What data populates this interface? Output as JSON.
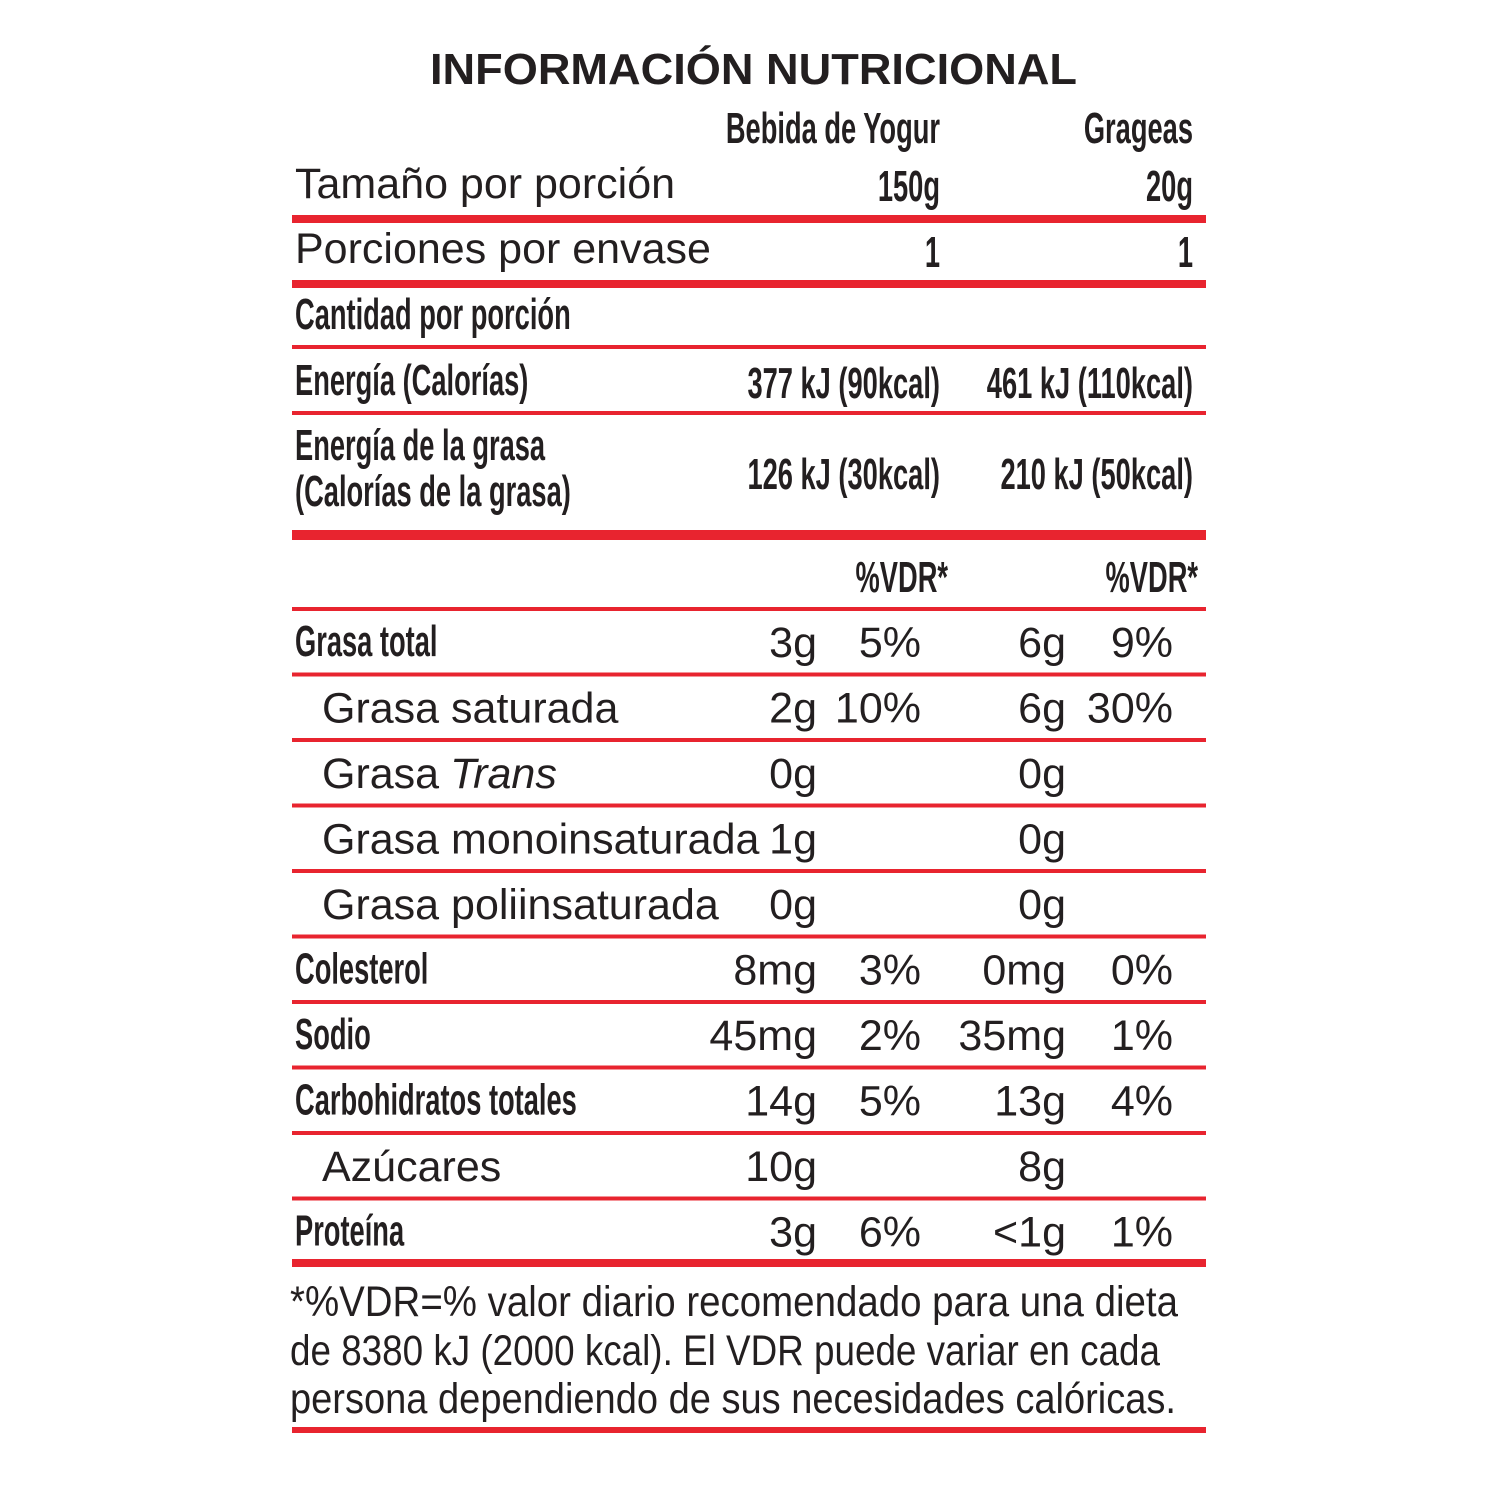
{
  "title": "INFORMACIÓN NUTRICIONAL",
  "columns": [
    "Bebida de Yogur",
    "Grageas"
  ],
  "serving_size": {
    "label": "Tamaño por porción",
    "values": [
      "150g",
      "20g"
    ]
  },
  "servings_per_container": {
    "label": "Porciones por envase",
    "values": [
      "1",
      "1"
    ]
  },
  "amount_per_serving": "Cantidad por porción",
  "energy": {
    "label": "Energía (Calorías)",
    "values": [
      "377 kJ (90kcal)",
      "461 kJ (110kcal)"
    ]
  },
  "fat_energy": {
    "label": [
      "Energía de la grasa",
      "(Calorías de la grasa)"
    ],
    "values": [
      "126 kJ (30kcal)",
      "210 kJ (50kcal)"
    ]
  },
  "vdr_headers": [
    "%VDR*",
    "%VDR*"
  ],
  "nutrients": [
    {
      "label": "Grasa total",
      "bold": true,
      "values": [
        "3g",
        "5%",
        "6g",
        "9%"
      ]
    },
    {
      "label": "Grasa saturada",
      "bold": false,
      "values": [
        "2g",
        "10%",
        "6g",
        "30%"
      ]
    },
    {
      "label": "Grasa",
      "label_italic": "Trans",
      "bold": false,
      "values": [
        "0g",
        null,
        "0g",
        null
      ]
    },
    {
      "label": "Grasa monoinsaturada",
      "bold": false,
      "values": [
        "1g",
        null,
        "0g",
        null
      ]
    },
    {
      "label": "Grasa poliinsaturada",
      "bold": false,
      "values": [
        "0g",
        null,
        "0g",
        null
      ]
    },
    {
      "label": "Colesterol",
      "bold": true,
      "values": [
        "8mg",
        "3%",
        "0mg",
        "0%"
      ]
    },
    {
      "label": "Sodio",
      "bold": true,
      "values": [
        "45mg",
        "2%",
        "35mg",
        "1%"
      ]
    },
    {
      "label": "Carbohidratos totales",
      "bold": true,
      "values": [
        "14g",
        "5%",
        "13g",
        "4%"
      ]
    },
    {
      "label": "Azúcares",
      "bold": false,
      "values": [
        "10g",
        null,
        "8g",
        null
      ]
    },
    {
      "label": "Proteína",
      "bold": true,
      "values": [
        "3g",
        "6%",
        "<1g",
        "1%"
      ]
    }
  ],
  "footnote": [
    "*%VDR=% valor diario recomendado para una dieta",
    "de 8380 kJ (2000 kcal). El VDR puede variar en cada",
    "persona dependiendo de sus necesidades calóricas."
  ]
}
